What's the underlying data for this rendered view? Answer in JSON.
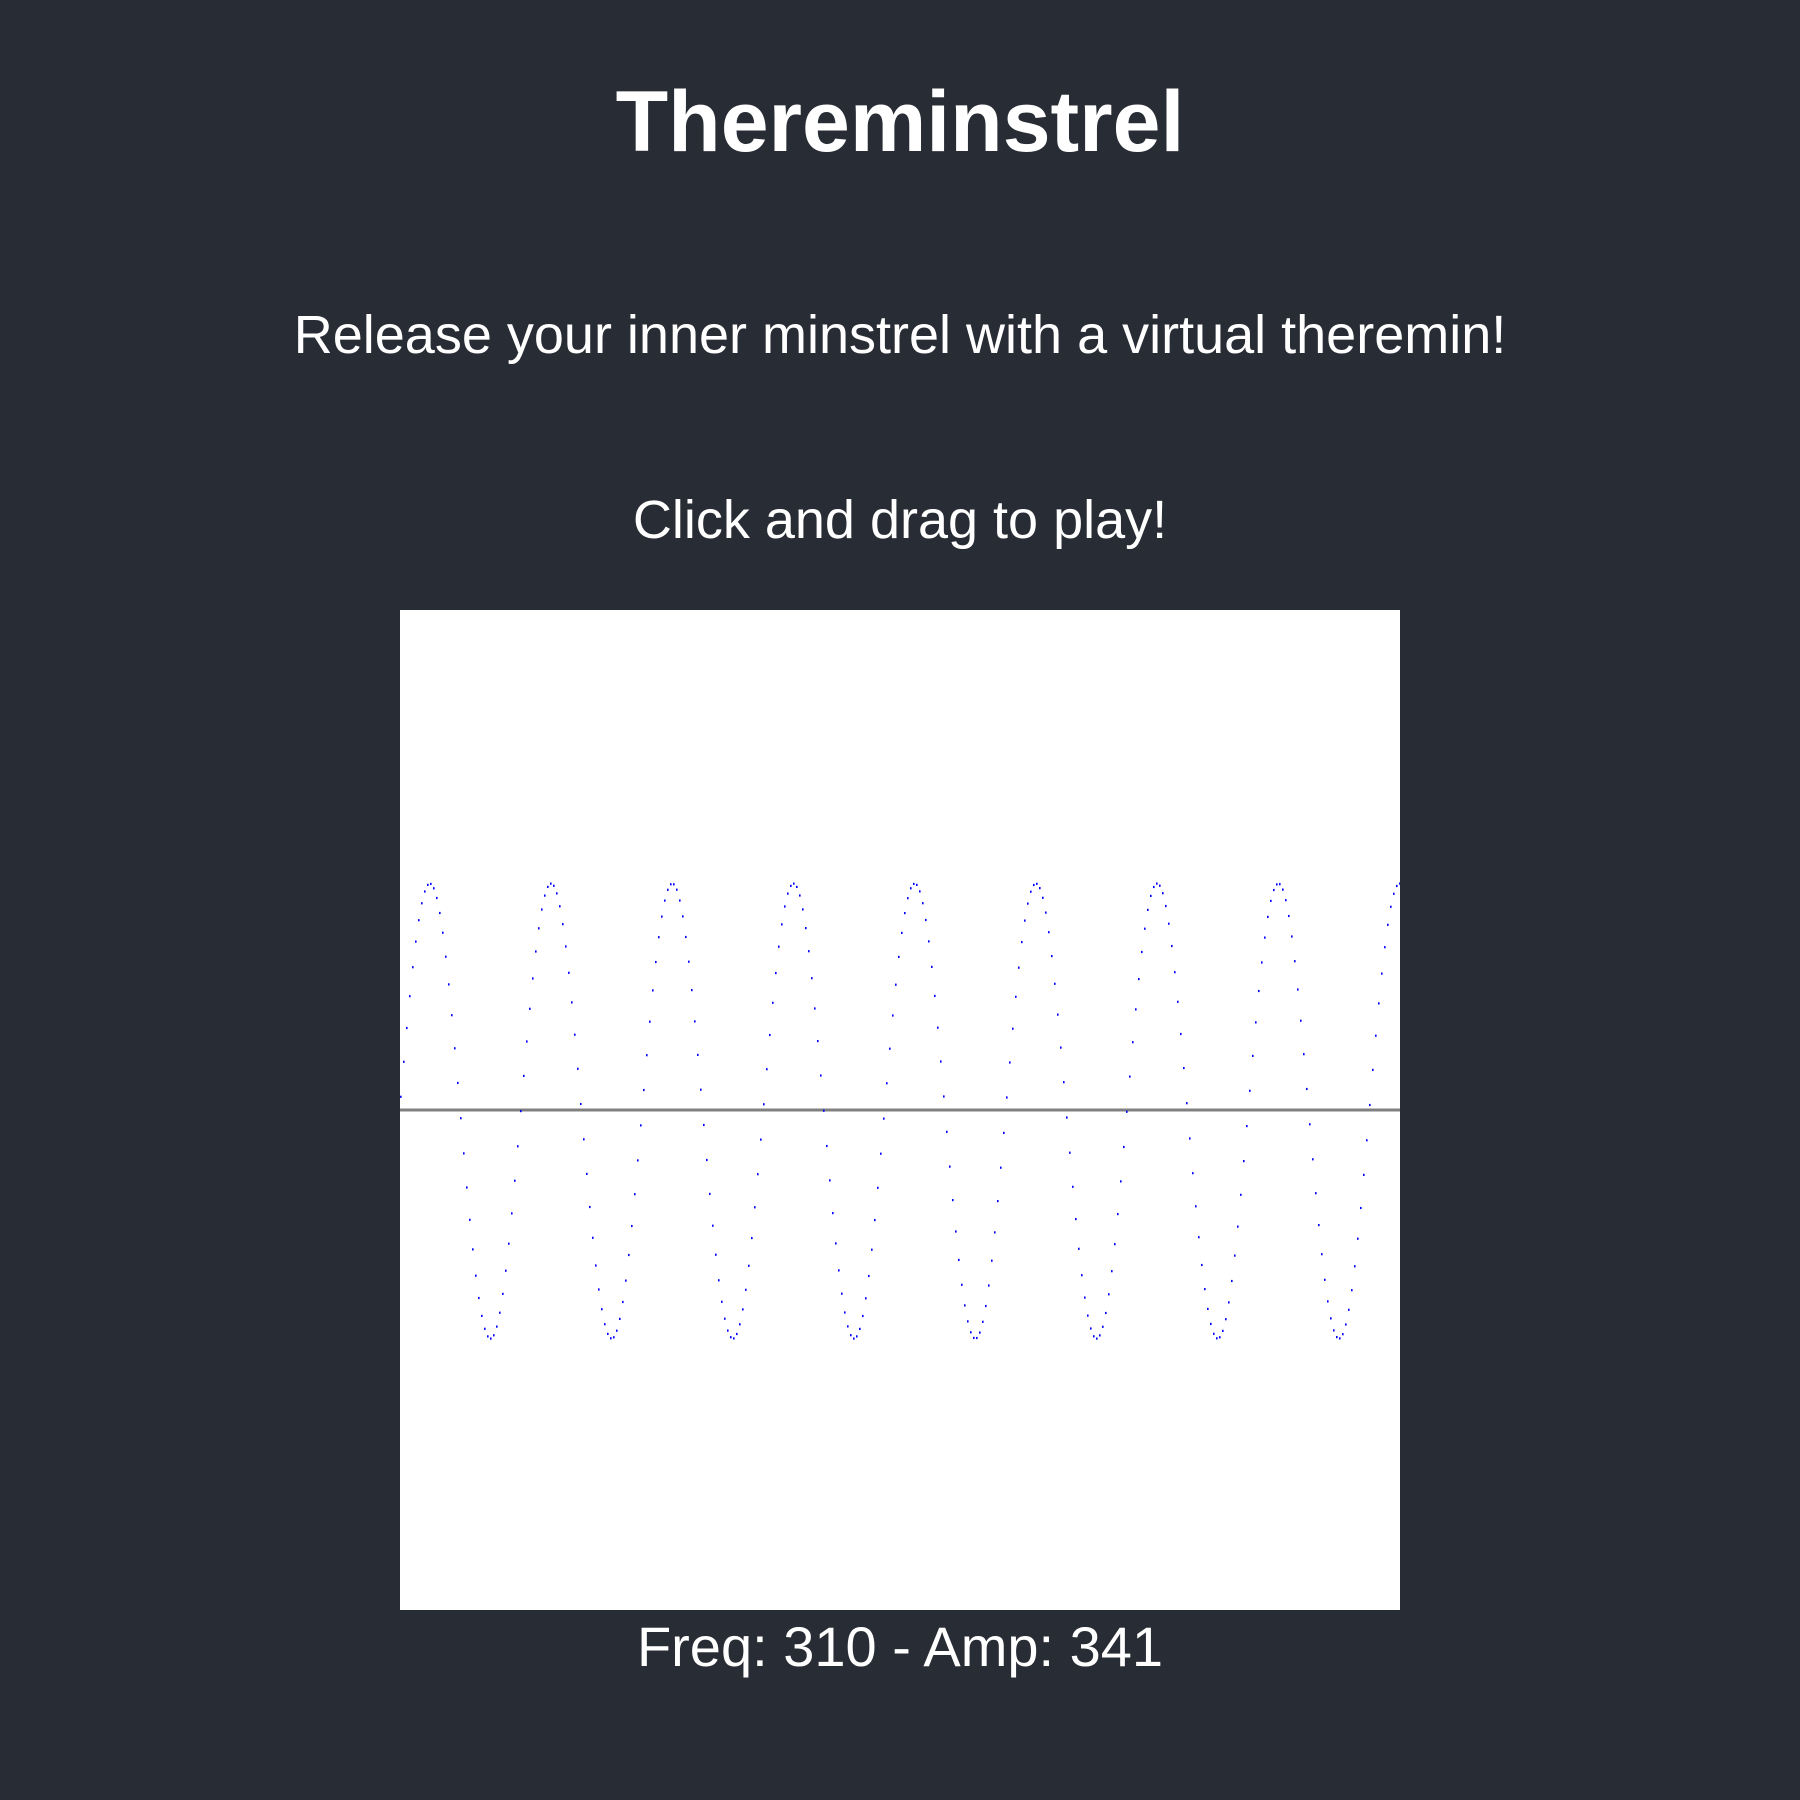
{
  "app": {
    "title": "Thereminstrel",
    "tagline": "Release your inner minstrel with a virtual theremin!",
    "instruction": "Click and drag to play!"
  },
  "readout": {
    "freq_label": "Freq:",
    "freq": "310",
    "separator": "-",
    "amp_label": "Amp:",
    "amp": "341"
  },
  "waveform": {
    "cycles_visible": 8.25,
    "amplitude_fraction": 0.455,
    "wave_color": "#0000ff",
    "axis_color": "#808080",
    "background": "#ffffff"
  },
  "theme": {
    "page_background": "#282c34",
    "text_color": "#ffffff"
  }
}
